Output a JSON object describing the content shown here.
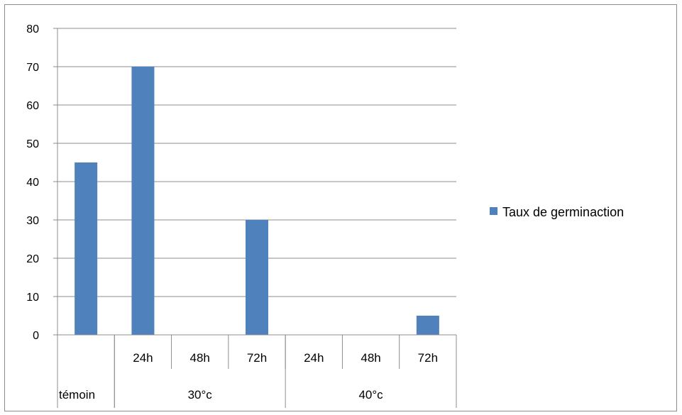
{
  "chart_data": {
    "type": "bar",
    "ylim": [
      0,
      80
    ],
    "ytick_step": 10,
    "yticks": [
      "0",
      "10",
      "20",
      "30",
      "40",
      "50",
      "60",
      "70",
      "80"
    ],
    "categories": [
      {
        "group": "témoin",
        "sub": ""
      },
      {
        "group": "30°c",
        "sub": "24h"
      },
      {
        "group": "30°c",
        "sub": "48h"
      },
      {
        "group": "30°c",
        "sub": "72h"
      },
      {
        "group": "40°c",
        "sub": "24h"
      },
      {
        "group": "40°c",
        "sub": "48h"
      },
      {
        "group": "40°c",
        "sub": "72h"
      }
    ],
    "groups": [
      "témoin",
      "30°c",
      "40°c"
    ],
    "series": [
      {
        "name": "Taux de germinaction",
        "values": [
          45,
          70,
          0,
          30,
          0,
          0,
          5
        ]
      }
    ],
    "grid": true,
    "legend_position": "right",
    "colors": {
      "bar": "#4f81bd",
      "grid": "#8c8c8c",
      "axis": "#8c8c8c"
    }
  }
}
